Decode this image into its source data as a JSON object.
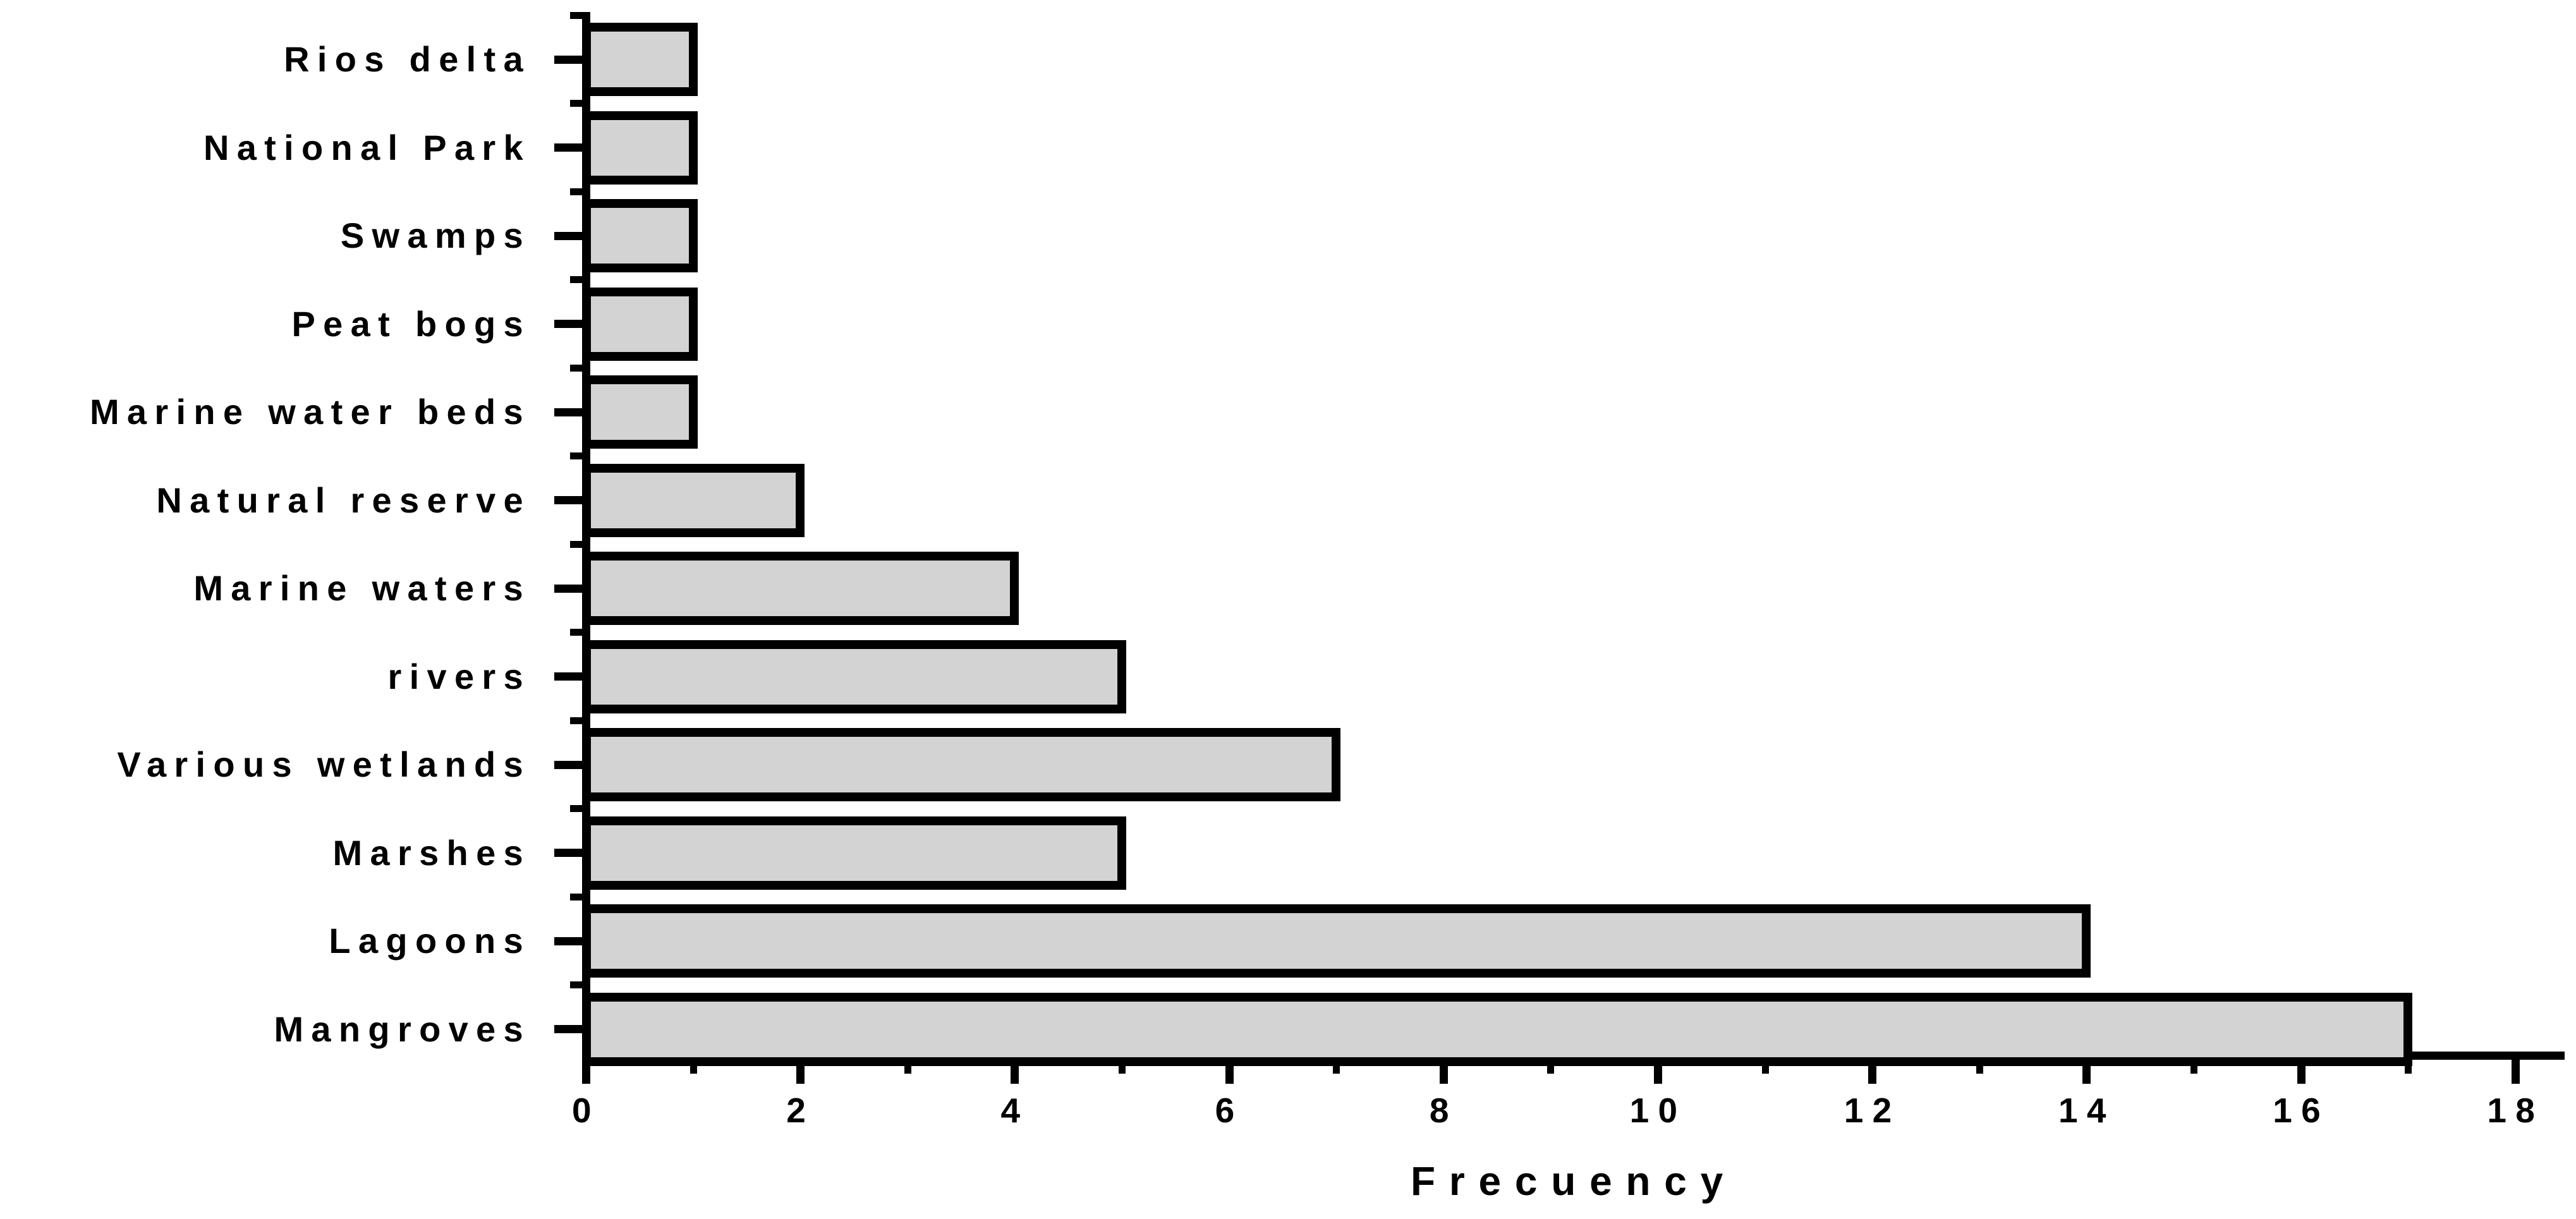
{
  "chart_data": {
    "type": "bar",
    "orientation": "horizontal",
    "title": "",
    "xlabel": "Frecuency",
    "ylabel": "",
    "categories": [
      "Rios delta",
      "National Park",
      "Swamps",
      "Peat bogs",
      "Marine water beds",
      "Natural reserve",
      "Marine waters",
      "rivers",
      "Various wetlands",
      "Marshes",
      "Lagoons",
      "Mangroves"
    ],
    "values": [
      1,
      1,
      1,
      1,
      1,
      2,
      4,
      5,
      7,
      5,
      14,
      17
    ],
    "xlim": [
      0,
      18.4
    ],
    "x_major_ticks": [
      0,
      2,
      4,
      6,
      8,
      10,
      12,
      14,
      16,
      18
    ],
    "x_tick_labels": [
      "0",
      "2",
      "4",
      "6",
      "8",
      "10",
      "12",
      "14",
      "16",
      "18"
    ],
    "x_minor_ticks": [
      1,
      3,
      5,
      7,
      9,
      11,
      13,
      15,
      17
    ],
    "grid": false,
    "legend": null,
    "bar_fill_color": "#d3d3d3",
    "bar_border_color": "#000000",
    "axis_color": "#000000",
    "background_color": "#ffffff"
  }
}
